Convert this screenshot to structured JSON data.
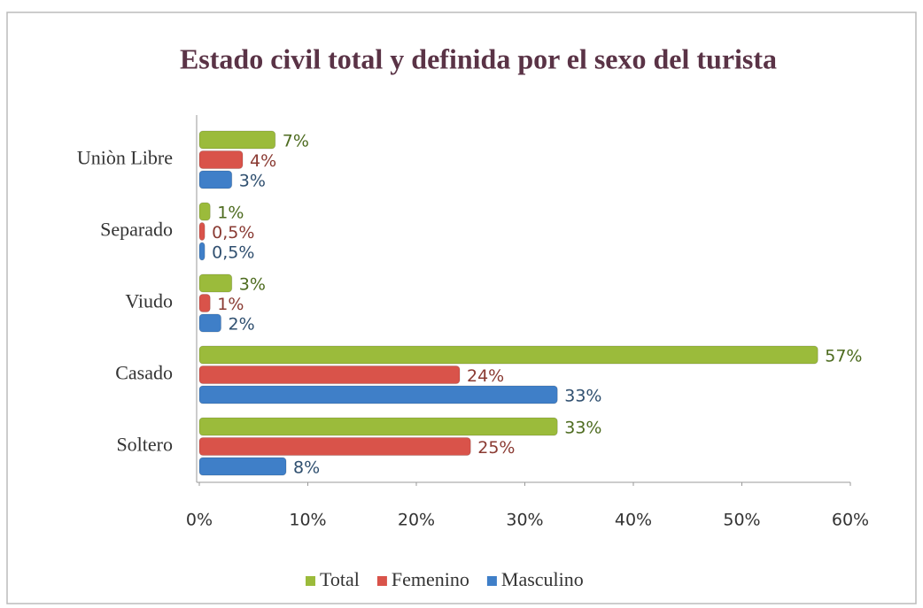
{
  "chart_data": {
    "type": "bar",
    "orientation": "horizontal",
    "title": "Estado civil total y definida por el sexo del turista",
    "categories": [
      "Soltero",
      "Casado",
      "Viudo",
      "Separado",
      "Uniòn Libre"
    ],
    "series": [
      {
        "name": "Total",
        "color": "#9bbb3b",
        "values": [
          33,
          57,
          3,
          1,
          7
        ],
        "value_labels": [
          "33%",
          "57%",
          "3%",
          "1%",
          "7%"
        ]
      },
      {
        "name": "Femenino",
        "color": "#d9534a",
        "values": [
          25,
          24,
          1,
          0.5,
          4
        ],
        "value_labels": [
          "25%",
          "24%",
          "1%",
          "0,5%",
          "4%"
        ]
      },
      {
        "name": "Masculino",
        "color": "#3f7fc8",
        "values": [
          8,
          33,
          2,
          0.5,
          3
        ],
        "value_labels": [
          "8%",
          "33%",
          "2%",
          "0,5%",
          "3%"
        ]
      }
    ],
    "xlim": [
      0,
      60
    ],
    "xticks": [
      {
        "value": 0,
        "label": "0%"
      },
      {
        "value": 10,
        "label": "10%"
      },
      {
        "value": 20,
        "label": "20%"
      },
      {
        "value": 30,
        "label": "30%"
      },
      {
        "value": 40,
        "label": "40%"
      },
      {
        "value": 50,
        "label": "50%"
      },
      {
        "value": 60,
        "label": "60%"
      }
    ],
    "grid": false,
    "legend": "bottom"
  }
}
